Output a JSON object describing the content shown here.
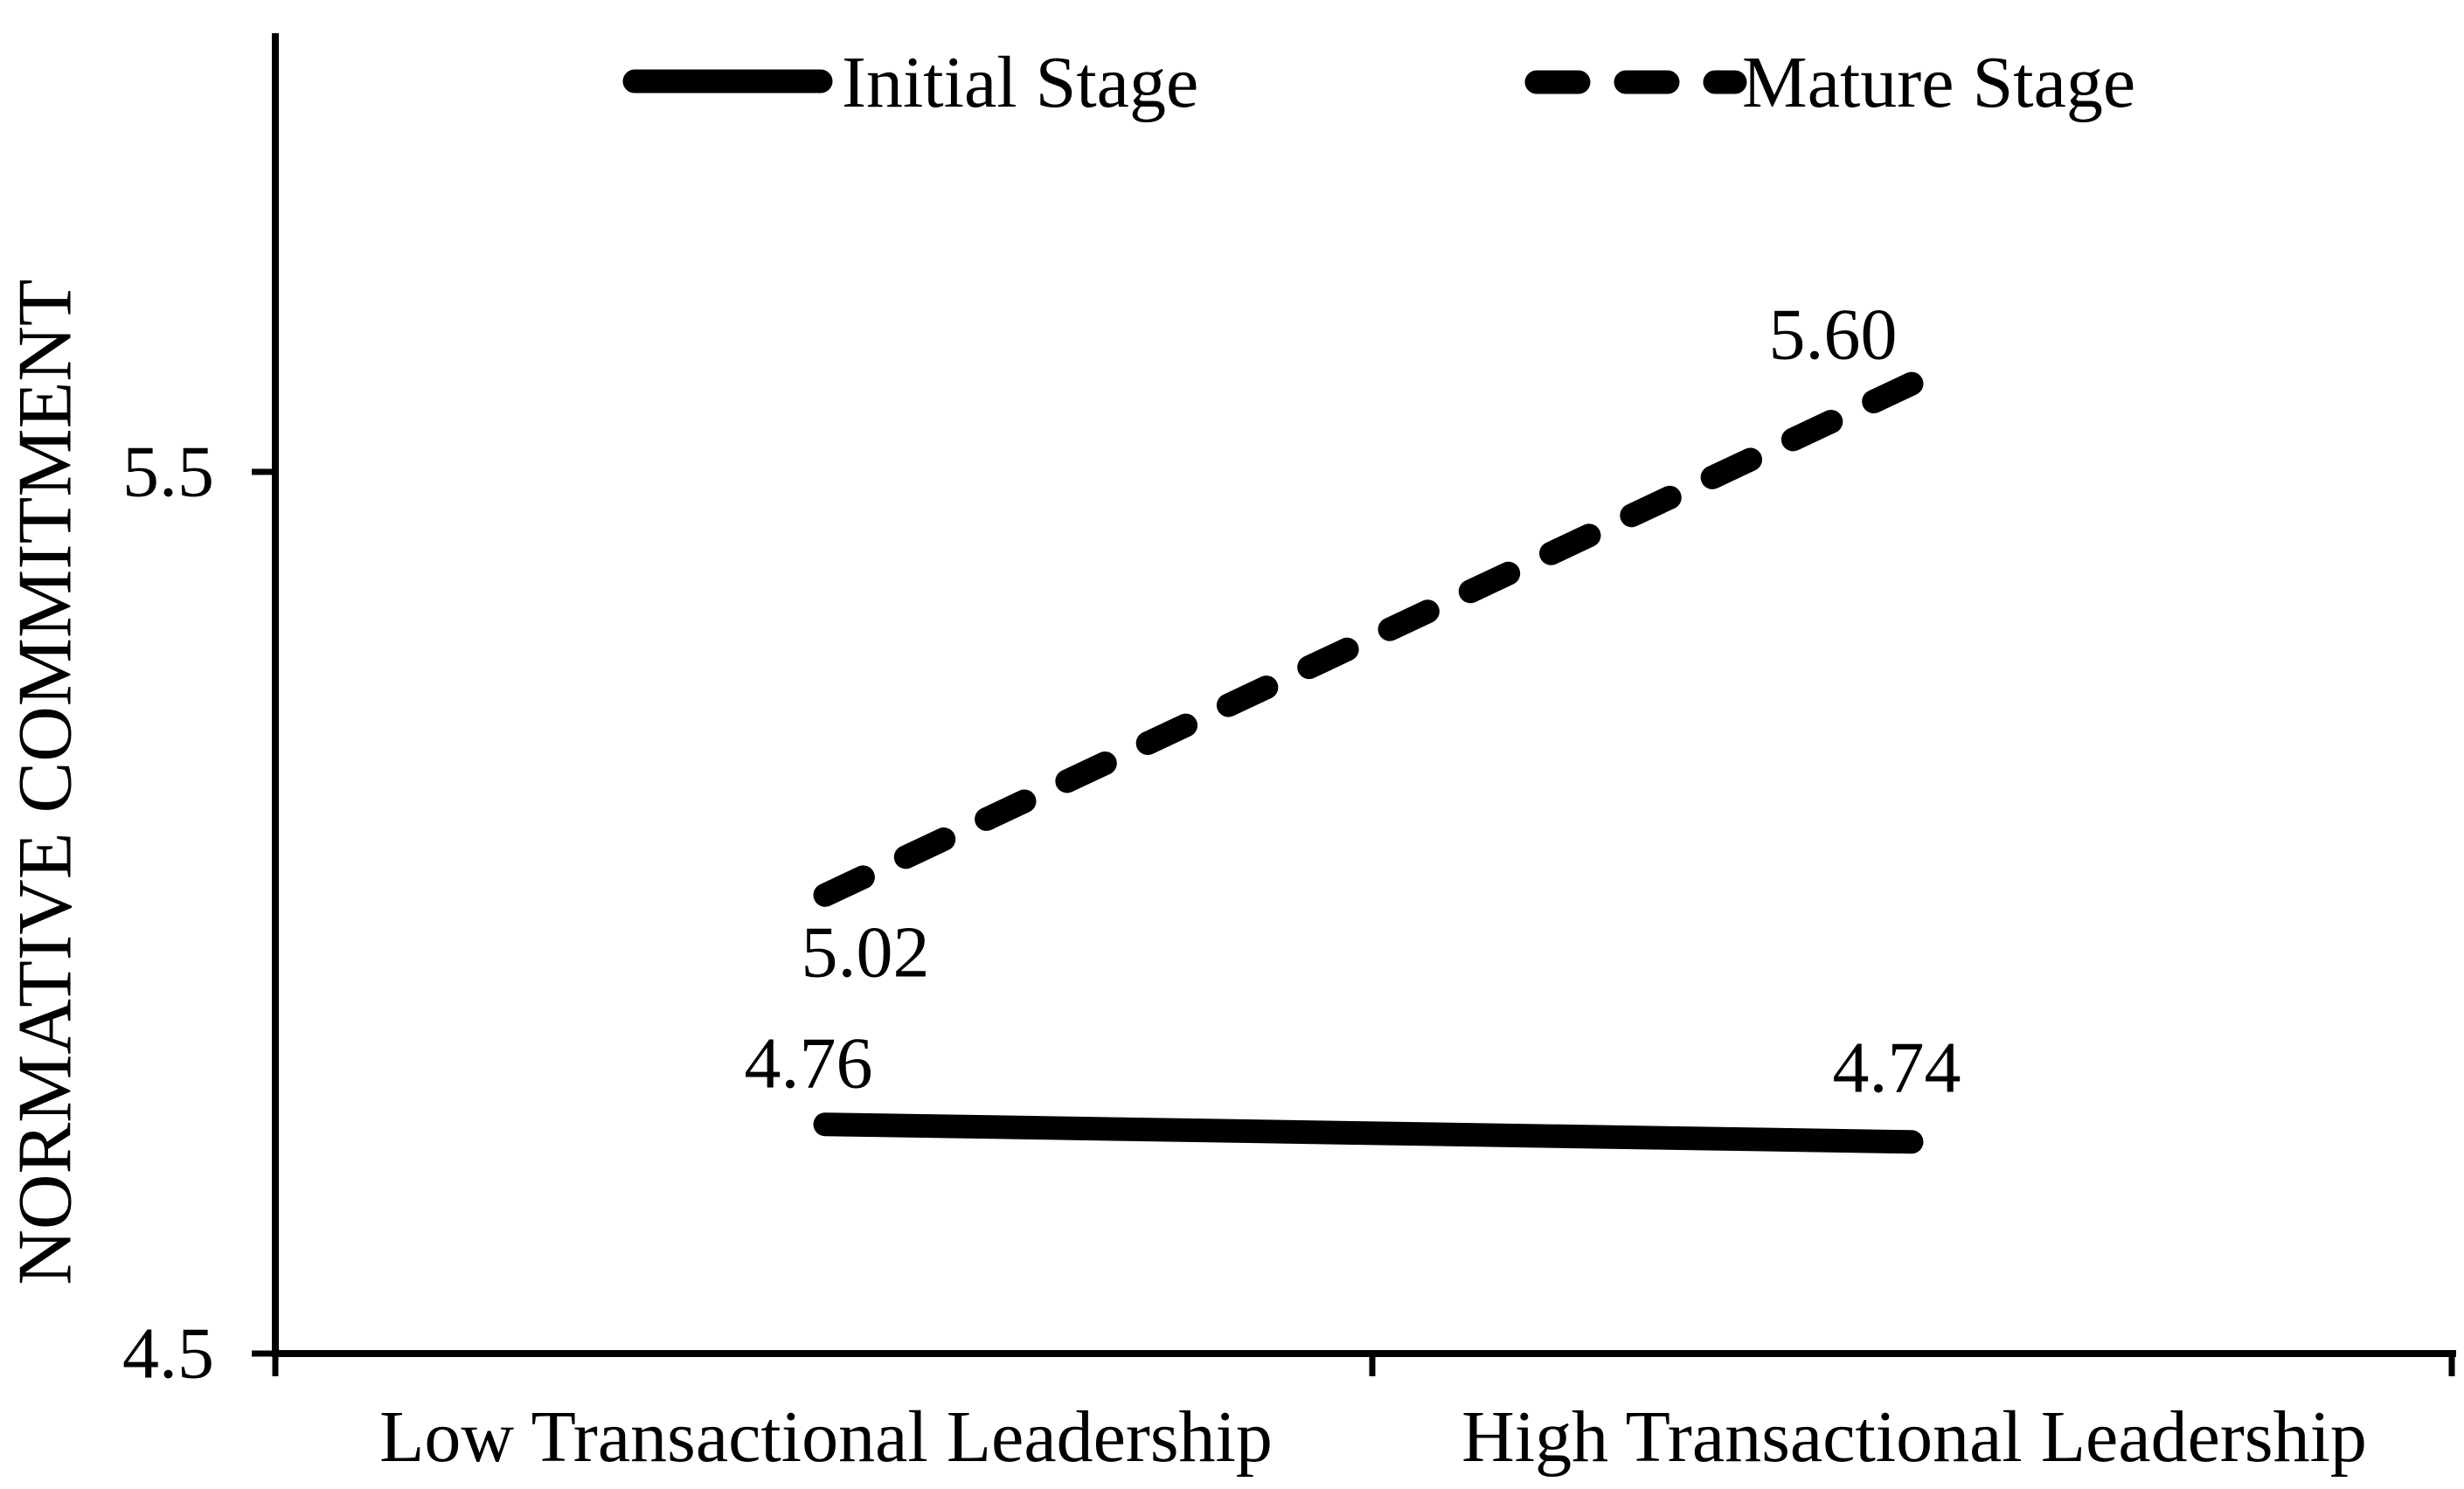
{
  "chart_data": {
    "type": "line",
    "title": "",
    "categories": [
      "Low Transactional Leadership",
      "High Transactional Leadership"
    ],
    "series": [
      {
        "name": "Initial Stage",
        "style": "solid",
        "values": [
          4.76,
          4.74
        ],
        "point_labels": [
          "4.76",
          "4.74"
        ]
      },
      {
        "name": "Mature Stage",
        "style": "dashed",
        "values": [
          5.02,
          5.6
        ],
        "point_labels": [
          "5.02",
          "5.60"
        ]
      }
    ],
    "xlabel": "",
    "ylabel": "NORMATIVE COMMITMENT",
    "ylim": [
      4.5,
      6.0
    ],
    "yticks": [
      4.5,
      5.5
    ],
    "ytick_labels": [
      "4.5",
      "5.5"
    ],
    "grid": false,
    "legend_position": "top",
    "colors": {
      "line": "#000000",
      "text": "#000000",
      "background": "#ffffff"
    }
  }
}
